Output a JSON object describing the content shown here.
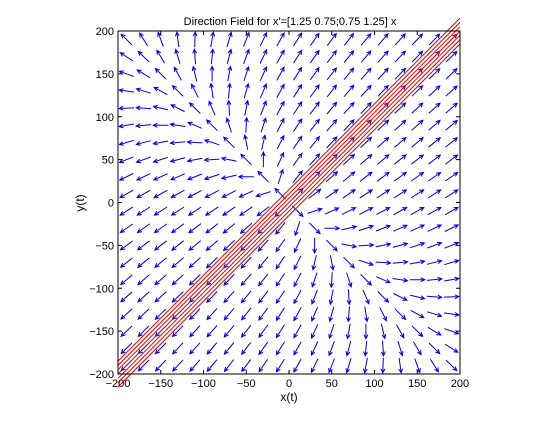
{
  "chart_data": {
    "type": "quiver",
    "title": "Direction Field for x'=[1.25 0.75;0.75 1.25] x",
    "xlabel": "x(t)",
    "ylabel": "y(t)",
    "xlim": [
      -200,
      200
    ],
    "ylim": [
      -200,
      200
    ],
    "xticks": [
      -200,
      -150,
      -100,
      -50,
      0,
      50,
      100,
      150,
      200
    ],
    "yticks": [
      -200,
      -150,
      -100,
      -50,
      0,
      50,
      100,
      150,
      200
    ],
    "matrix": [
      [
        1.25,
        0.75
      ],
      [
        0.75,
        1.25
      ]
    ],
    "field_grid": {
      "from": -190,
      "to": 190,
      "step": 20
    },
    "field_color": "#0000dd",
    "trajectories": {
      "color": "#dd0000",
      "series": [
        {
          "x": [
            -200,
            200
          ],
          "y": [
            -215,
            185
          ]
        },
        {
          "x": [
            -200,
            200
          ],
          "y": [
            -210,
            190
          ]
        },
        {
          "x": [
            -200,
            200
          ],
          "y": [
            -205,
            195
          ]
        },
        {
          "x": [
            -200,
            200
          ],
          "y": [
            -200,
            200
          ]
        },
        {
          "x": [
            -200,
            200
          ],
          "y": [
            -195,
            205
          ]
        },
        {
          "x": [
            -200,
            200
          ],
          "y": [
            -190,
            210
          ]
        },
        {
          "x": [
            -200,
            200
          ],
          "y": [
            -185,
            215
          ]
        }
      ]
    },
    "grid": false,
    "frame": "box"
  }
}
